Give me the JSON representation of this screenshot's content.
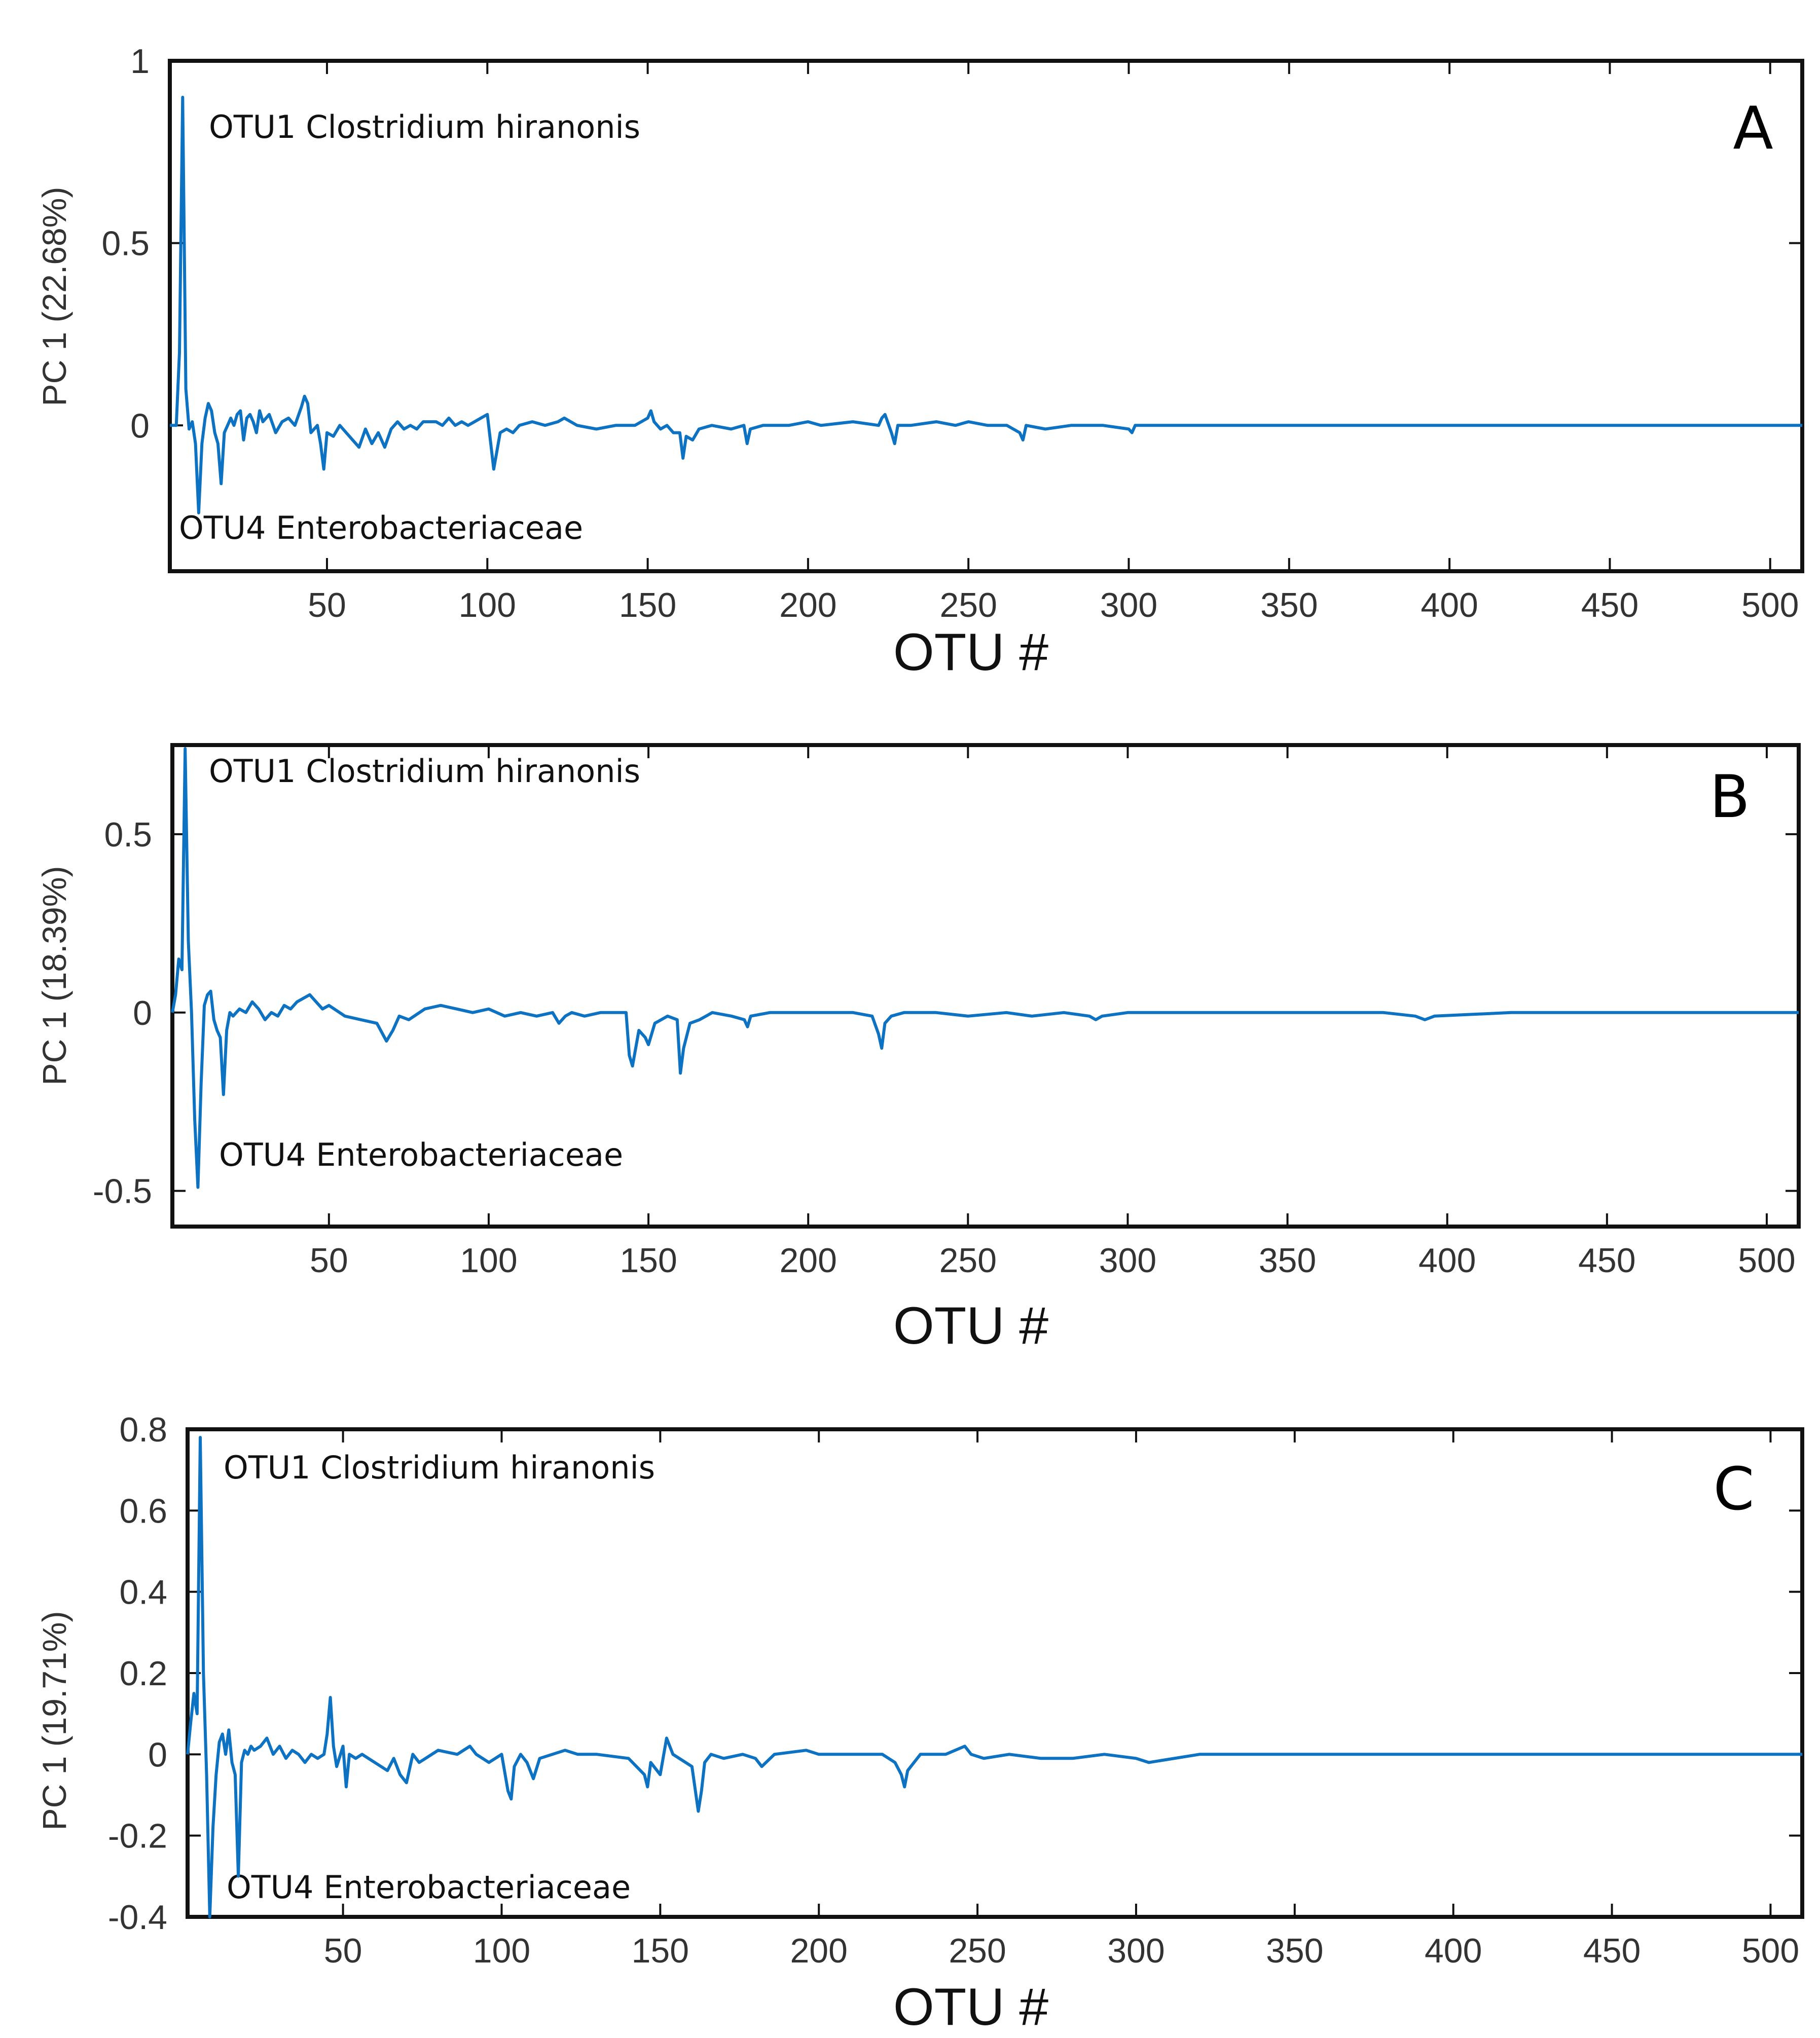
{
  "chart_data": [
    {
      "type": "line",
      "panel_label": "A",
      "xlabel": "OTU #",
      "ylabel": "PC 1 (22.68%)",
      "xlim": [
        1,
        510
      ],
      "ylim": [
        -0.4,
        1.0
      ],
      "yticks": [
        0,
        0.5,
        1
      ],
      "yticklabels": [
        "0",
        "0.5",
        "1"
      ],
      "xticks": [
        50,
        100,
        150,
        200,
        250,
        300,
        350,
        400,
        450,
        500
      ],
      "xticklabels": [
        "50",
        "100",
        "150",
        "200",
        "250",
        "300",
        "350",
        "400",
        "450",
        "500"
      ],
      "grid": false,
      "color": "#0c72c1",
      "annotations": [
        {
          "text": "OTU1 Clostridium hiranonis",
          "x": 12,
          "y": 0.83
        },
        {
          "text": "OTU4 Enterobacteriaceae",
          "x": 5,
          "y": -0.3
        }
      ],
      "series": [
        {
          "x": [
            1,
            3,
            4,
            5,
            6,
            7,
            8,
            9,
            10,
            11,
            12,
            13,
            14,
            15,
            16,
            17,
            18,
            19,
            20,
            21,
            22,
            23,
            24,
            25,
            26,
            27,
            28,
            29,
            30,
            32,
            34,
            36,
            38,
            40,
            42,
            43,
            44,
            45,
            47,
            48,
            49,
            50,
            52,
            54,
            56,
            58,
            60,
            62,
            64,
            66,
            68,
            70,
            72,
            74,
            76,
            78,
            80,
            84,
            86,
            88,
            90,
            92,
            94,
            96,
            98,
            100,
            102,
            104,
            106,
            108,
            110,
            114,
            118,
            122,
            124,
            128,
            134,
            140,
            146,
            150,
            151,
            152,
            154,
            156,
            158,
            160,
            161,
            162,
            164,
            166,
            170,
            176,
            180,
            181,
            182,
            186,
            194,
            200,
            204,
            214,
            222,
            223,
            224,
            226,
            227,
            228,
            232,
            240,
            246,
            250,
            256,
            262,
            266,
            267,
            268,
            274,
            282,
            292,
            300,
            301,
            302,
            310,
            330,
            350,
            370,
            400,
            430,
            460,
            490,
            510
          ],
          "y": [
            0,
            0,
            0.2,
            0.9,
            0.1,
            -0.01,
            0.01,
            -0.05,
            -0.24,
            -0.05,
            0.02,
            0.06,
            0.04,
            -0.02,
            -0.05,
            -0.16,
            -0.02,
            0,
            0.02,
            0,
            0.03,
            0.04,
            -0.04,
            0.02,
            0.03,
            0.01,
            -0.02,
            0.04,
            0.01,
            0.03,
            -0.02,
            0.01,
            0.02,
            0,
            0.05,
            0.08,
            0.06,
            -0.02,
            0,
            -0.05,
            -0.12,
            -0.02,
            -0.03,
            0,
            -0.02,
            -0.04,
            -0.06,
            -0.01,
            -0.05,
            -0.02,
            -0.06,
            -0.01,
            0.01,
            -0.01,
            0,
            -0.01,
            0.01,
            0.01,
            0,
            0.02,
            0,
            0.01,
            0,
            0.01,
            0.02,
            0.03,
            -0.12,
            -0.02,
            -0.01,
            -0.02,
            0,
            0.01,
            0,
            0.01,
            0.02,
            0,
            -0.01,
            0,
            0,
            0.02,
            0.04,
            0.01,
            -0.01,
            0,
            -0.02,
            -0.02,
            -0.09,
            -0.03,
            -0.04,
            -0.01,
            0,
            -0.01,
            0,
            -0.05,
            -0.01,
            0,
            0,
            0.01,
            0,
            0.01,
            0,
            0.02,
            0.03,
            -0.02,
            -0.05,
            0,
            0,
            0.01,
            0,
            0.01,
            0,
            0,
            -0.02,
            -0.04,
            0,
            -0.01,
            0,
            0,
            -0.01,
            -0.02,
            0,
            0,
            0,
            0,
            0,
            0,
            0,
            0,
            0,
            0
          ]
        }
      ]
    },
    {
      "type": "line",
      "panel_label": "B",
      "xlabel": "OTU #",
      "ylabel": "PC 1  (18.39%)",
      "xlim": [
        1,
        510
      ],
      "ylim": [
        -0.6,
        0.75
      ],
      "yticks": [
        -0.5,
        0,
        0.5
      ],
      "yticklabels": [
        "-0.5",
        "0",
        "0.5"
      ],
      "xticks": [
        50,
        100,
        150,
        200,
        250,
        300,
        350,
        400,
        450,
        500
      ],
      "xticklabels": [
        "50",
        "100",
        "150",
        "200",
        "250",
        "300",
        "350",
        "400",
        "450",
        "500"
      ],
      "grid": false,
      "color": "#0c72c1",
      "annotations": [
        {
          "text": "OTU1 Clostridium hiranonis",
          "x": 12,
          "y": 0.68
        },
        {
          "text": "OTU4 Enterobacteriaceae",
          "x": 16,
          "y": -0.42
        }
      ],
      "series": [
        {
          "x": [
            1,
            2,
            3,
            4,
            5,
            6,
            7,
            8,
            9,
            10,
            11,
            12,
            13,
            14,
            15,
            16,
            17,
            18,
            19,
            20,
            22,
            24,
            26,
            28,
            30,
            32,
            34,
            36,
            38,
            40,
            42,
            44,
            46,
            48,
            50,
            55,
            60,
            65,
            68,
            70,
            72,
            75,
            80,
            85,
            90,
            95,
            100,
            105,
            110,
            115,
            120,
            122,
            124,
            126,
            130,
            135,
            140,
            143,
            144,
            145,
            147,
            149,
            150,
            152,
            154,
            156,
            159,
            160,
            161,
            163,
            166,
            170,
            176,
            180,
            181,
            182,
            188,
            196,
            206,
            214,
            220,
            222,
            223,
            224,
            226,
            230,
            240,
            250,
            262,
            270,
            280,
            288,
            290,
            292,
            300,
            320,
            340,
            360,
            380,
            390,
            393,
            396,
            420,
            450,
            480,
            510
          ],
          "y": [
            0,
            0.05,
            0.15,
            0.12,
            0.74,
            0.2,
            0,
            -0.3,
            -0.49,
            -0.2,
            0.02,
            0.05,
            0.06,
            -0.02,
            -0.05,
            -0.07,
            -0.23,
            -0.05,
            0,
            -0.01,
            0.01,
            0,
            0.03,
            0.01,
            -0.02,
            0,
            -0.01,
            0.02,
            0.01,
            0.03,
            0.04,
            0.05,
            0.03,
            0.01,
            0.02,
            -0.01,
            -0.02,
            -0.03,
            -0.08,
            -0.05,
            -0.01,
            -0.02,
            0.01,
            0.02,
            0.01,
            0,
            0.01,
            -0.01,
            0,
            -0.01,
            0,
            -0.03,
            -0.01,
            0,
            -0.01,
            0,
            0,
            0,
            -0.12,
            -0.15,
            -0.05,
            -0.07,
            -0.09,
            -0.03,
            -0.02,
            -0.01,
            -0.02,
            -0.17,
            -0.1,
            -0.03,
            -0.02,
            0,
            -0.01,
            -0.02,
            -0.04,
            -0.01,
            0,
            0,
            0,
            0,
            -0.01,
            -0.06,
            -0.1,
            -0.03,
            -0.01,
            0,
            0,
            -0.01,
            0,
            -0.01,
            0,
            -0.01,
            -0.02,
            -0.01,
            0,
            0,
            0,
            0,
            0,
            -0.01,
            -0.02,
            -0.01,
            0,
            0,
            0,
            0
          ]
        }
      ]
    },
    {
      "type": "line",
      "panel_label": "C",
      "xlabel": "OTU #",
      "ylabel": "PC 1 (19.71%)",
      "xlim": [
        1,
        510
      ],
      "ylim": [
        -0.4,
        0.8
      ],
      "yticks": [
        -0.4,
        -0.2,
        0,
        0.2,
        0.4,
        0.6,
        0.8
      ],
      "yticklabels": [
        "-0.4",
        "-0.2",
        "0",
        "0.2",
        "0.4",
        "0.6",
        "0.8"
      ],
      "xticks": [
        50,
        100,
        150,
        200,
        250,
        300,
        350,
        400,
        450,
        500
      ],
      "xticklabels": [
        "50",
        "100",
        "150",
        "200",
        "250",
        "300",
        "350",
        "400",
        "450",
        "500"
      ],
      "grid": false,
      "color": "#0c72c1",
      "annotations": [
        {
          "text": "OTU1 Clostridium hiranonis",
          "x": 14,
          "y": 0.66
        },
        {
          "text": "OTU4 Enterobacteriaceae",
          "x": 14,
          "y": -0.39
        }
      ],
      "series": [
        {
          "x": [
            1,
            2,
            3,
            4,
            5,
            6,
            7,
            8,
            9,
            10,
            11,
            12,
            13,
            14,
            15,
            16,
            17,
            18,
            19,
            20,
            21,
            22,
            24,
            26,
            28,
            30,
            32,
            34,
            36,
            38,
            40,
            42,
            44,
            45,
            46,
            47,
            48,
            50,
            51,
            52,
            54,
            56,
            60,
            64,
            66,
            68,
            70,
            72,
            74,
            80,
            86,
            90,
            92,
            96,
            100,
            102,
            103,
            104,
            106,
            108,
            110,
            112,
            116,
            120,
            124,
            130,
            140,
            145,
            146,
            147,
            150,
            152,
            154,
            156,
            160,
            162,
            163,
            164,
            166,
            170,
            176,
            180,
            182,
            186,
            196,
            200,
            210,
            220,
            224,
            226,
            227,
            228,
            232,
            240,
            246,
            248,
            252,
            260,
            270,
            280,
            290,
            300,
            304,
            320,
            350,
            380,
            410,
            440,
            470,
            510
          ],
          "y": [
            0,
            0.08,
            0.15,
            0.1,
            0.78,
            0.2,
            -0.05,
            -0.42,
            -0.18,
            -0.05,
            0.03,
            0.05,
            0,
            0.06,
            -0.02,
            -0.05,
            -0.3,
            -0.02,
            0.01,
            0,
            0.02,
            0.01,
            0.02,
            0.04,
            0,
            0.02,
            -0.01,
            0.01,
            0,
            -0.02,
            0,
            -0.01,
            0,
            0.05,
            0.14,
            0.02,
            -0.03,
            0.02,
            -0.08,
            0,
            -0.01,
            0,
            -0.02,
            -0.04,
            -0.01,
            -0.05,
            -0.07,
            0,
            -0.02,
            0.01,
            0,
            0.02,
            0,
            -0.02,
            0,
            -0.09,
            -0.11,
            -0.03,
            0,
            -0.02,
            -0.06,
            -0.01,
            0,
            0.01,
            0,
            0,
            -0.01,
            -0.05,
            -0.08,
            -0.02,
            -0.05,
            0.04,
            0,
            -0.01,
            -0.03,
            -0.14,
            -0.09,
            -0.02,
            0,
            -0.01,
            0,
            -0.01,
            -0.03,
            0,
            0.01,
            0,
            0,
            0,
            -0.02,
            -0.05,
            -0.08,
            -0.04,
            0,
            0,
            0.02,
            0,
            -0.01,
            0,
            -0.01,
            -0.01,
            0,
            -0.01,
            -0.02,
            0,
            0,
            0,
            0,
            0,
            0,
            0
          ]
        }
      ]
    }
  ]
}
